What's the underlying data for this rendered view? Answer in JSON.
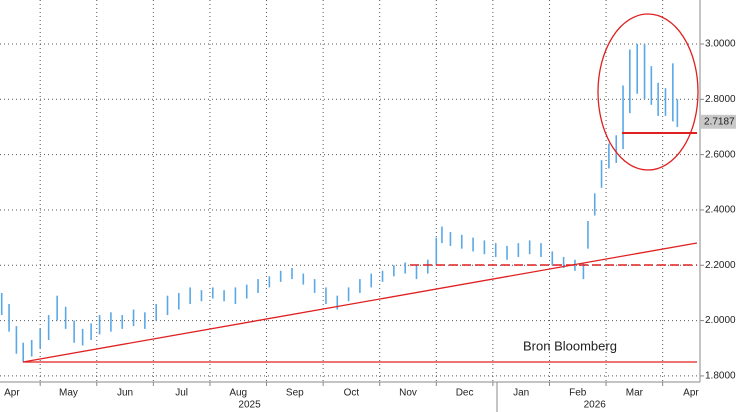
{
  "chart_data": {
    "type": "ohlc",
    "annotation": "Bron Bloomberg",
    "last_value": {
      "value": 2.7187,
      "label": "2.7187"
    },
    "xlim": [
      0.29,
      12.66
    ],
    "xticks": [
      {
        "value": 0.5,
        "label": "Apr"
      },
      {
        "value": 1.5,
        "label": "May"
      },
      {
        "value": 2.5,
        "label": "Jun"
      },
      {
        "value": 3.5,
        "label": "Jul"
      },
      {
        "value": 4.5,
        "label": "Aug"
      },
      {
        "value": 5.5,
        "label": "Sep"
      },
      {
        "value": 6.5,
        "label": "Oct"
      },
      {
        "value": 7.5,
        "label": "Nov"
      },
      {
        "value": 8.5,
        "label": "Dec"
      },
      {
        "value": 9.5,
        "label": "Jan"
      },
      {
        "value": 10.5,
        "label": "Feb"
      },
      {
        "value": 11.5,
        "label": "Mar"
      },
      {
        "value": 12.5,
        "label": "Apr"
      }
    ],
    "years": [
      {
        "value": 4.7,
        "label": "2025"
      },
      {
        "value": 10.8,
        "label": "2026"
      }
    ],
    "ylim": [
      1.778,
      3.159
    ],
    "yticks": [
      {
        "value": 1.8,
        "label": "1.8000"
      },
      {
        "value": 2.0,
        "label": "2.0000"
      },
      {
        "value": 2.2,
        "label": "2.2000"
      },
      {
        "value": 2.4,
        "label": "2.4000"
      },
      {
        "value": 2.6,
        "label": "2.6000"
      },
      {
        "value": 2.8,
        "label": "2.8000"
      },
      {
        "value": 3.0,
        "label": "3.0000"
      }
    ],
    "grid": true,
    "series": [
      {
        "color": "#5aa8e6",
        "x": [
          0.32,
          0.45,
          0.58,
          0.7,
          0.85,
          1.0,
          1.15,
          1.3,
          1.45,
          1.6,
          1.75,
          1.9,
          2.05,
          2.25,
          2.45,
          2.65,
          2.85,
          3.05,
          3.25,
          3.45,
          3.65,
          3.85,
          4.05,
          4.25,
          4.45,
          4.65,
          4.85,
          5.05,
          5.25,
          5.45,
          5.65,
          5.85,
          6.05,
          6.25,
          6.45,
          6.65,
          6.85,
          7.05,
          7.25,
          7.45,
          7.65,
          7.85,
          8.0,
          8.1,
          8.25,
          8.45,
          8.65,
          8.85,
          9.05,
          9.25,
          9.45,
          9.65,
          9.85,
          10.05,
          10.25,
          10.45,
          10.6,
          10.68,
          10.8,
          10.92,
          11.05,
          11.18,
          11.3,
          11.42,
          11.55,
          11.68,
          11.8,
          11.92,
          12.05,
          12.18,
          12.26
        ],
        "low": [
          2.02,
          1.96,
          1.88,
          1.85,
          1.87,
          1.9,
          1.93,
          2.0,
          1.97,
          1.92,
          1.91,
          1.93,
          1.95,
          1.96,
          1.97,
          1.98,
          1.97,
          2.0,
          2.02,
          2.04,
          2.06,
          2.07,
          2.08,
          2.07,
          2.06,
          2.08,
          2.1,
          2.12,
          2.14,
          2.15,
          2.13,
          2.1,
          2.06,
          2.04,
          2.07,
          2.1,
          2.12,
          2.14,
          2.16,
          2.17,
          2.15,
          2.17,
          2.2,
          2.28,
          2.27,
          2.26,
          2.25,
          2.24,
          2.23,
          2.22,
          2.23,
          2.24,
          2.23,
          2.2,
          2.19,
          2.18,
          2.15,
          2.26,
          2.38,
          2.48,
          2.55,
          2.57,
          2.62,
          2.75,
          2.82,
          2.8,
          2.78,
          2.74,
          2.74,
          2.72,
          2.7
        ],
        "high": [
          2.1,
          2.06,
          1.98,
          1.92,
          1.93,
          1.97,
          2.02,
          2.09,
          2.05,
          2.0,
          1.97,
          1.99,
          2.02,
          2.03,
          2.02,
          2.04,
          2.03,
          2.06,
          2.09,
          2.1,
          2.12,
          2.11,
          2.12,
          2.11,
          2.12,
          2.13,
          2.15,
          2.16,
          2.18,
          2.19,
          2.17,
          2.15,
          2.12,
          2.09,
          2.12,
          2.15,
          2.17,
          2.18,
          2.2,
          2.21,
          2.2,
          2.22,
          2.3,
          2.34,
          2.32,
          2.31,
          2.3,
          2.29,
          2.28,
          2.27,
          2.28,
          2.29,
          2.28,
          2.25,
          2.23,
          2.22,
          2.21,
          2.36,
          2.46,
          2.58,
          2.64,
          2.67,
          2.85,
          2.98,
          3.0,
          3.0,
          2.92,
          2.86,
          2.84,
          2.93,
          2.8
        ]
      }
    ]
  }
}
